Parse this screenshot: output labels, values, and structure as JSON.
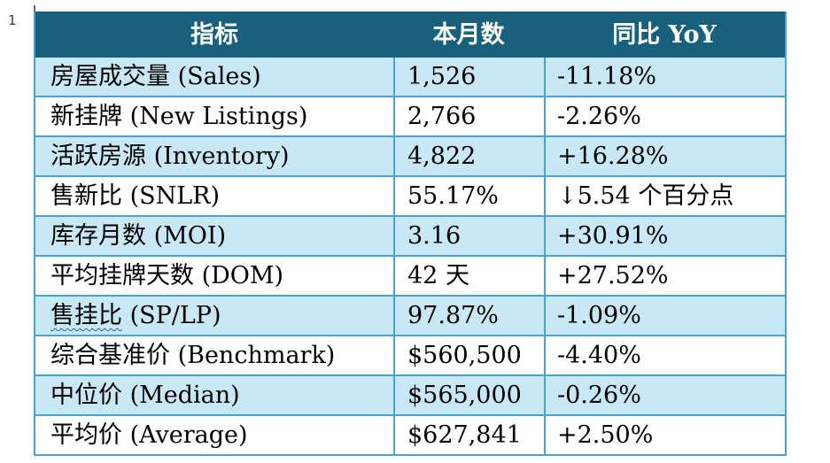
{
  "page": {
    "marker": "1"
  },
  "colors": {
    "header_bg": "#17617F",
    "header_text": "#FFFFFF",
    "row_alt_bg": "#C9E8F6",
    "row_bg": "#FFFFFF",
    "border": "#45A3D5",
    "text": "#000000",
    "spellcheck_underline": "#2E5BDA"
  },
  "table": {
    "headers": [
      "指标",
      "本月数",
      "同比 YoY"
    ],
    "rows": [
      {
        "label": "房屋成交量 (Sales)",
        "value": "1,526",
        "yoy": "-11.18%"
      },
      {
        "label": "新挂牌 (New Listings)",
        "value": "2,766",
        "yoy": "-2.26%"
      },
      {
        "label": "活跃房源 (Inventory)",
        "value": "4,822",
        "yoy": "+16.28%"
      },
      {
        "label": "售新比 (SNLR)",
        "value": "55.17%",
        "yoy": "↓5.54 个百分点"
      },
      {
        "label": "库存月数 (MOI)",
        "value": "3.16",
        "yoy": "+30.91%"
      },
      {
        "label": "平均挂牌天数 (DOM)",
        "value": "42 天",
        "yoy": "+27.52%"
      },
      {
        "label_wavy": "售挂比",
        "label_rest": " (SP/LP)",
        "value": "97.87%",
        "yoy": "-1.09%"
      },
      {
        "label": "综合基准价 (Benchmark)",
        "value": "$560,500",
        "yoy": "-4.40%"
      },
      {
        "label": "中位价 (Median)",
        "value": "$565,000",
        "yoy": "-0.26%"
      },
      {
        "label": "平均价 (Average)",
        "value": "$627,841",
        "yoy": "+2.50%"
      }
    ]
  }
}
